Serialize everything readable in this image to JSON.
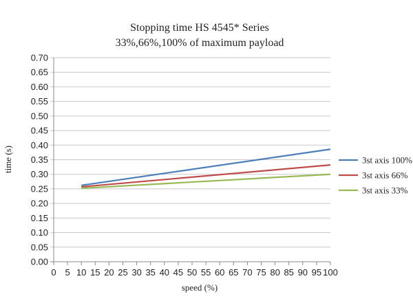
{
  "chart_data": {
    "type": "line",
    "title": "Stopping time HS 4545* Series",
    "subtitle": "33%,66%,100% of maximum payload",
    "xlabel": "speed (%)",
    "ylabel": "time (s)",
    "xlim": [
      0,
      100
    ],
    "ylim": [
      0,
      0.7
    ],
    "x_ticks": [
      "0",
      "5",
      "10",
      "15",
      "20",
      "25",
      "30",
      "35",
      "40",
      "45",
      "50",
      "55",
      "60",
      "65",
      "70",
      "75",
      "80",
      "85",
      "90",
      "95",
      "100"
    ],
    "y_ticks": [
      "0.00",
      "0.05",
      "0.10",
      "0.15",
      "0.20",
      "0.25",
      "0.30",
      "0.35",
      "0.40",
      "0.45",
      "0.50",
      "0.55",
      "0.60",
      "0.65",
      "0.70"
    ],
    "grid": true,
    "legend_position": "right",
    "series": [
      {
        "name": "3st axis 100%",
        "color": "#4a7ebb",
        "x": [
          10,
          100
        ],
        "y": [
          0.262,
          0.386
        ]
      },
      {
        "name": "3st axis 66%",
        "color": "#be4b48",
        "x": [
          10,
          100
        ],
        "y": [
          0.257,
          0.332
        ]
      },
      {
        "name": "3st axis 33%",
        "color": "#98b954",
        "x": [
          10,
          100
        ],
        "y": [
          0.252,
          0.3
        ]
      }
    ]
  }
}
